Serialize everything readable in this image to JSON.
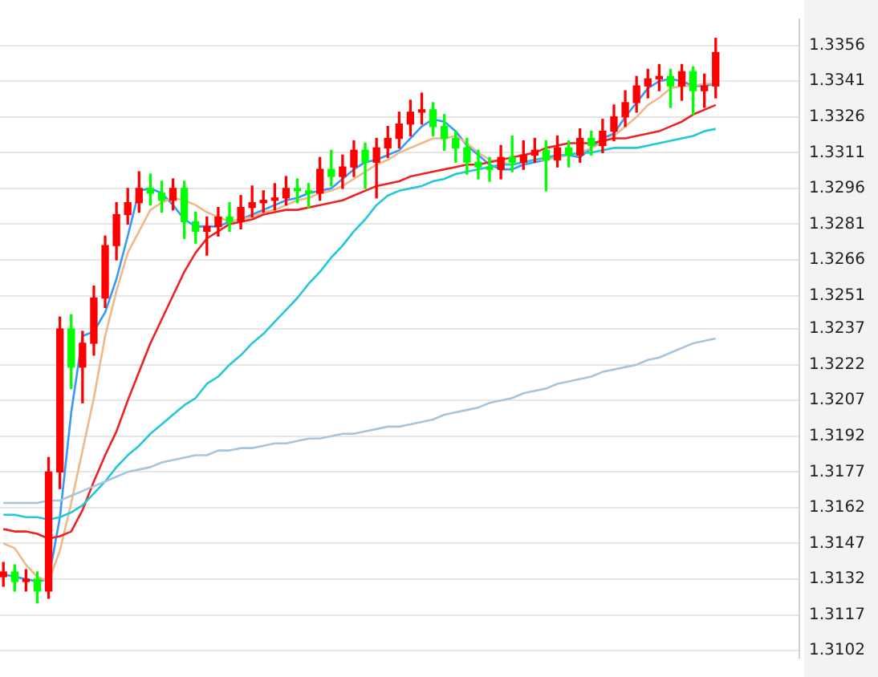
{
  "chart_data": {
    "type": "candlestick",
    "categories": [
      null,
      null,
      null,
      null,
      null,
      null,
      null,
      null,
      null,
      null,
      null,
      null,
      null,
      null,
      null,
      null,
      null,
      null,
      null,
      null,
      null,
      null,
      null,
      null,
      null,
      null,
      null,
      null,
      null,
      null,
      null,
      null,
      null,
      null,
      null,
      null,
      null,
      null,
      null,
      null,
      null,
      null,
      null,
      null,
      null,
      null,
      null,
      null,
      null,
      null,
      null,
      null,
      null,
      null,
      null,
      null,
      null,
      null,
      null,
      null,
      null,
      null,
      null,
      null
    ],
    "ohlc": [
      [
        1.3133,
        1.3139,
        1.3129,
        1.3135
      ],
      [
        1.3135,
        1.3138,
        1.3127,
        1.3131
      ],
      [
        1.3131,
        1.3136,
        1.3127,
        1.3132
      ],
      [
        1.3132,
        1.3135,
        1.3122,
        1.3127
      ],
      [
        1.3127,
        1.3183,
        1.3124,
        1.3177
      ],
      [
        1.3177,
        1.3242,
        1.317,
        1.3237
      ],
      [
        1.3237,
        1.3243,
        1.3212,
        1.3221
      ],
      [
        1.3221,
        1.3236,
        1.3206,
        1.3231
      ],
      [
        1.3231,
        1.3255,
        1.3226,
        1.325
      ],
      [
        1.325,
        1.3276,
        1.3246,
        1.3272
      ],
      [
        1.3272,
        1.329,
        1.3266,
        1.3285
      ],
      [
        1.3285,
        1.3296,
        1.3281,
        1.329
      ],
      [
        1.329,
        1.3303,
        1.3286,
        1.3296
      ],
      [
        1.3296,
        1.3302,
        1.3289,
        1.3294
      ],
      [
        1.3294,
        1.3299,
        1.3286,
        1.3291
      ],
      [
        1.3291,
        1.33,
        1.3287,
        1.3296
      ],
      [
        1.3296,
        1.3299,
        1.3275,
        1.3282
      ],
      [
        1.3282,
        1.3286,
        1.3273,
        1.3278
      ],
      [
        1.3278,
        1.3284,
        1.3268,
        1.328
      ],
      [
        1.328,
        1.3288,
        1.3276,
        1.3284
      ],
      [
        1.3284,
        1.329,
        1.3278,
        1.3282
      ],
      [
        1.3282,
        1.3293,
        1.3279,
        1.3288
      ],
      [
        1.3288,
        1.3297,
        1.3284,
        1.329
      ],
      [
        1.329,
        1.3295,
        1.3286,
        1.3291
      ],
      [
        1.3291,
        1.3298,
        1.3287,
        1.3292
      ],
      [
        1.3292,
        1.3301,
        1.3289,
        1.3296
      ],
      [
        1.3296,
        1.33,
        1.329,
        1.3295
      ],
      [
        1.3295,
        1.3298,
        1.3288,
        1.3294
      ],
      [
        1.3294,
        1.3309,
        1.3291,
        1.3304
      ],
      [
        1.3304,
        1.3312,
        1.3297,
        1.3301
      ],
      [
        1.3301,
        1.331,
        1.3296,
        1.3305
      ],
      [
        1.3305,
        1.3316,
        1.3301,
        1.3312
      ],
      [
        1.3312,
        1.3315,
        1.3296,
        1.3307
      ],
      [
        1.3307,
        1.3317,
        1.3292,
        1.3313
      ],
      [
        1.3313,
        1.3322,
        1.3309,
        1.3317
      ],
      [
        1.3317,
        1.3328,
        1.3313,
        1.3323
      ],
      [
        1.3323,
        1.3333,
        1.3318,
        1.3328
      ],
      [
        1.3328,
        1.3336,
        1.3323,
        1.3329
      ],
      [
        1.3329,
        1.3332,
        1.3318,
        1.3322
      ],
      [
        1.3322,
        1.3327,
        1.3312,
        1.3317
      ],
      [
        1.3317,
        1.332,
        1.3307,
        1.3313
      ],
      [
        1.3313,
        1.3317,
        1.3302,
        1.3307
      ],
      [
        1.3307,
        1.3312,
        1.33,
        1.3305
      ],
      [
        1.3305,
        1.3309,
        1.3299,
        1.3304
      ],
      [
        1.3304,
        1.3314,
        1.33,
        1.3309
      ],
      [
        1.3309,
        1.3318,
        1.3303,
        1.3307
      ],
      [
        1.3307,
        1.3316,
        1.3304,
        1.331
      ],
      [
        1.331,
        1.3317,
        1.3307,
        1.3312
      ],
      [
        1.3312,
        1.3316,
        1.3295,
        1.3308
      ],
      [
        1.3308,
        1.3318,
        1.3305,
        1.3313
      ],
      [
        1.3313,
        1.3316,
        1.3305,
        1.331
      ],
      [
        1.331,
        1.3321,
        1.3307,
        1.3317
      ],
      [
        1.3317,
        1.332,
        1.331,
        1.3314
      ],
      [
        1.3314,
        1.3325,
        1.3311,
        1.332
      ],
      [
        1.332,
        1.3331,
        1.3316,
        1.3326
      ],
      [
        1.3326,
        1.3337,
        1.3322,
        1.3332
      ],
      [
        1.3332,
        1.3343,
        1.3328,
        1.3339
      ],
      [
        1.3339,
        1.3346,
        1.3334,
        1.3342
      ],
      [
        1.3342,
        1.3348,
        1.3337,
        1.3343
      ],
      [
        1.3343,
        1.3346,
        1.333,
        1.3339
      ],
      [
        1.3339,
        1.3348,
        1.3333,
        1.3345
      ],
      [
        1.3345,
        1.3347,
        1.3327,
        1.3337
      ],
      [
        1.3337,
        1.3344,
        1.333,
        1.3339
      ],
      [
        1.3339,
        1.3359,
        1.3334,
        1.3353
      ]
    ],
    "colors": [
      "#ff0000",
      "#00ff00",
      "#ff0000",
      "#00ff00",
      "#ff0000",
      "#ff0000",
      "#00ff00",
      "#ff0000",
      "#ff0000",
      "#ff0000",
      "#ff0000",
      "#ff0000",
      "#ff0000",
      "#00ff00",
      "#00ff00",
      "#ff0000",
      "#00ff00",
      "#00ff00",
      "#ff0000",
      "#ff0000",
      "#00ff00",
      "#ff0000",
      "#ff0000",
      "#ff0000",
      "#ff0000",
      "#ff0000",
      "#00ff00",
      "#00ff00",
      "#ff0000",
      "#00ff00",
      "#ff0000",
      "#ff0000",
      "#00ff00",
      "#ff0000",
      "#ff0000",
      "#ff0000",
      "#ff0000",
      "#ff0000",
      "#00ff00",
      "#00ff00",
      "#00ff00",
      "#00ff00",
      "#00ff00",
      "#00ff00",
      "#ff0000",
      "#00ff00",
      "#ff0000",
      "#ff0000",
      "#00ff00",
      "#ff0000",
      "#00ff00",
      "#ff0000",
      "#00ff00",
      "#ff0000",
      "#ff0000",
      "#ff0000",
      "#ff0000",
      "#ff0000",
      "#ff0000",
      "#00ff00",
      "#ff0000",
      "#00ff00",
      "#ff0000",
      "#ff0000"
    ],
    "series": [
      {
        "type": "line",
        "color": "#a8c4dc",
        "values": [
          1.3164,
          1.3164,
          1.3164,
          1.3164,
          1.3165,
          1.3165,
          1.3167,
          1.3169,
          1.3171,
          1.3173,
          1.3175,
          1.3177,
          1.3178,
          1.3179,
          1.3181,
          1.3182,
          1.3183,
          1.3184,
          1.3184,
          1.3186,
          1.3186,
          1.3187,
          1.3187,
          1.3188,
          1.3189,
          1.3189,
          1.319,
          1.3191,
          1.3191,
          1.3192,
          1.3193,
          1.3193,
          1.3194,
          1.3195,
          1.3196,
          1.3196,
          1.3197,
          1.3198,
          1.3199,
          1.3201,
          1.3202,
          1.3203,
          1.3204,
          1.3206,
          1.3207,
          1.3208,
          1.321,
          1.3211,
          1.3212,
          1.3214,
          1.3215,
          1.3216,
          1.3217,
          1.3219,
          1.322,
          1.3221,
          1.3222,
          1.3224,
          1.3225,
          1.3227,
          1.3229,
          1.3231,
          1.3232,
          1.3233
        ]
      },
      {
        "type": "line",
        "color": "#22c8d8",
        "values": [
          1.3159,
          1.3159,
          1.3158,
          1.3158,
          1.3157,
          1.3158,
          1.316,
          1.3163,
          1.3168,
          1.3173,
          1.3179,
          1.3184,
          1.3188,
          1.3193,
          1.3197,
          1.3201,
          1.3205,
          1.3208,
          1.3214,
          1.3217,
          1.3222,
          1.3226,
          1.3231,
          1.3235,
          1.324,
          1.3245,
          1.325,
          1.3256,
          1.3261,
          1.3267,
          1.3272,
          1.3278,
          1.3283,
          1.3289,
          1.3293,
          1.3295,
          1.3296,
          1.3297,
          1.3299,
          1.33,
          1.3302,
          1.3303,
          1.3304,
          1.3305,
          1.3306,
          1.3306,
          1.3307,
          1.3308,
          1.3309,
          1.331,
          1.331,
          1.3311,
          1.3311,
          1.3312,
          1.3313,
          1.3313,
          1.3313,
          1.3314,
          1.3315,
          1.3316,
          1.3317,
          1.3318,
          1.332,
          1.3321
        ]
      },
      {
        "type": "line",
        "color": "#ee2222",
        "values": [
          1.3153,
          1.3152,
          1.3152,
          1.3151,
          1.3149,
          1.315,
          1.3152,
          1.3161,
          1.3173,
          1.3184,
          1.3194,
          1.3207,
          1.3219,
          1.3231,
          1.3241,
          1.3251,
          1.3261,
          1.3269,
          1.3275,
          1.3278,
          1.3281,
          1.3282,
          1.3283,
          1.3285,
          1.3286,
          1.3287,
          1.3287,
          1.3288,
          1.3289,
          1.329,
          1.3291,
          1.3293,
          1.3295,
          1.3297,
          1.3298,
          1.3299,
          1.3301,
          1.3302,
          1.3303,
          1.3304,
          1.3305,
          1.3306,
          1.3306,
          1.3307,
          1.3308,
          1.3309,
          1.331,
          1.3311,
          1.3313,
          1.3314,
          1.3315,
          1.3315,
          1.3315,
          1.3316,
          1.3317,
          1.3317,
          1.3318,
          1.3319,
          1.332,
          1.3322,
          1.3324,
          1.3327,
          1.3329,
          1.3331
        ]
      },
      {
        "type": "line",
        "color": "#f0b888",
        "values": [
          1.3147,
          1.3145,
          1.3138,
          1.3133,
          1.3131,
          1.3144,
          1.3164,
          1.3186,
          1.3208,
          1.3234,
          1.3253,
          1.3269,
          1.3278,
          1.3287,
          1.329,
          1.3292,
          1.3291,
          1.3289,
          1.3286,
          1.3284,
          1.3282,
          1.3283,
          1.3284,
          1.3286,
          1.3287,
          1.3289,
          1.3291,
          1.3292,
          1.3294,
          1.3295,
          1.3297,
          1.33,
          1.3303,
          1.3306,
          1.3308,
          1.3311,
          1.3313,
          1.3315,
          1.3317,
          1.3317,
          1.3318,
          1.3315,
          1.3311,
          1.3308,
          1.3307,
          1.3306,
          1.3307,
          1.3308,
          1.3308,
          1.3309,
          1.331,
          1.3311,
          1.3313,
          1.3315,
          1.3318,
          1.3322,
          1.3326,
          1.3331,
          1.3334,
          1.3338,
          1.3339,
          1.3339,
          1.334,
          1.334
        ]
      },
      {
        "type": "line",
        "color": "#3399ff",
        "values": [
          1.3134,
          1.3133,
          1.3132,
          1.3131,
          1.3132,
          1.3158,
          1.3202,
          1.3234,
          1.3236,
          1.3244,
          1.3258,
          1.3276,
          1.3295,
          1.3296,
          1.3294,
          1.3289,
          1.3283,
          1.328,
          1.328,
          1.328,
          1.3282,
          1.3283,
          1.3285,
          1.3287,
          1.3289,
          1.3291,
          1.3292,
          1.3294,
          1.3295,
          1.3296,
          1.33,
          1.3304,
          1.3307,
          1.3308,
          1.331,
          1.3312,
          1.3317,
          1.3322,
          1.3325,
          1.3324,
          1.332,
          1.3314,
          1.331,
          1.3306,
          1.3304,
          1.3304,
          1.3306,
          1.3307,
          1.3308,
          1.331,
          1.331,
          1.3309,
          1.3313,
          1.3317,
          1.3319,
          1.3326,
          1.3332,
          1.3338,
          1.3341,
          1.3342,
          1.3341,
          1.3339,
          1.3339,
          1.334
        ]
      }
    ],
    "ylim": [
      1.3099,
      1.3367
    ],
    "yticks": [
      1.3102,
      1.3117,
      1.3132,
      1.3147,
      1.3162,
      1.3177,
      1.3192,
      1.3207,
      1.3222,
      1.3237,
      1.3251,
      1.3266,
      1.3281,
      1.3296,
      1.3311,
      1.3326,
      1.3341,
      1.3356
    ],
    "grid": "y",
    "tick_labels": "y",
    "marker": "none"
  }
}
